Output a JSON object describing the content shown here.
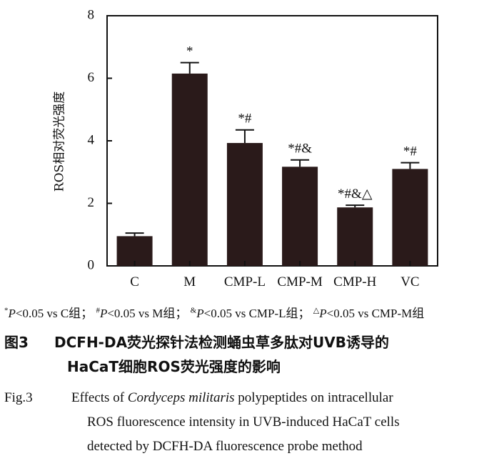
{
  "chart_data": {
    "type": "bar",
    "categories": [
      "C",
      "M",
      "CMP-L",
      "CMP-M",
      "CMP-H",
      "VC"
    ],
    "values": [
      0.95,
      6.15,
      3.93,
      3.17,
      1.87,
      3.1
    ],
    "errors": [
      0.1,
      0.35,
      0.42,
      0.22,
      0.07,
      0.2
    ],
    "significance": [
      "",
      "*",
      "*#",
      "*#&",
      "*#&△",
      "*#"
    ],
    "ylabel": "ROS相对荧光强度",
    "ylim": [
      0,
      8
    ],
    "yticks": [
      "0",
      "2",
      "4",
      "6",
      "8"
    ],
    "bar_color": "#2a1a1a"
  },
  "footnote": {
    "s1": "*",
    "t1": "P",
    "r1": "<0.05 vs C组；",
    "s2": "#",
    "t2": "P",
    "r2": "<0.05 vs M组；",
    "s3": "&",
    "t3": "P",
    "r3": "<0.05 vs CMP-L组；",
    "s4": "△",
    "t4": "P",
    "r4": "<0.05 vs CMP-M组"
  },
  "caption_cn": {
    "number": "图3",
    "line1": "DCFH-DA荧光探针法检测蛹虫草多肽对UVB诱导的",
    "line2": "HaCaT细胞ROS荧光强度的影响"
  },
  "caption_en": {
    "number": "Fig.3",
    "line1a": "Effects of ",
    "line1b": "Cordyceps militaris",
    "line1c": " polypeptides on intracellular",
    "line2": "ROS fluorescence intensity in UVB-induced HaCaT cells",
    "line3": "detected by DCFH-DA fluorescence probe method"
  }
}
